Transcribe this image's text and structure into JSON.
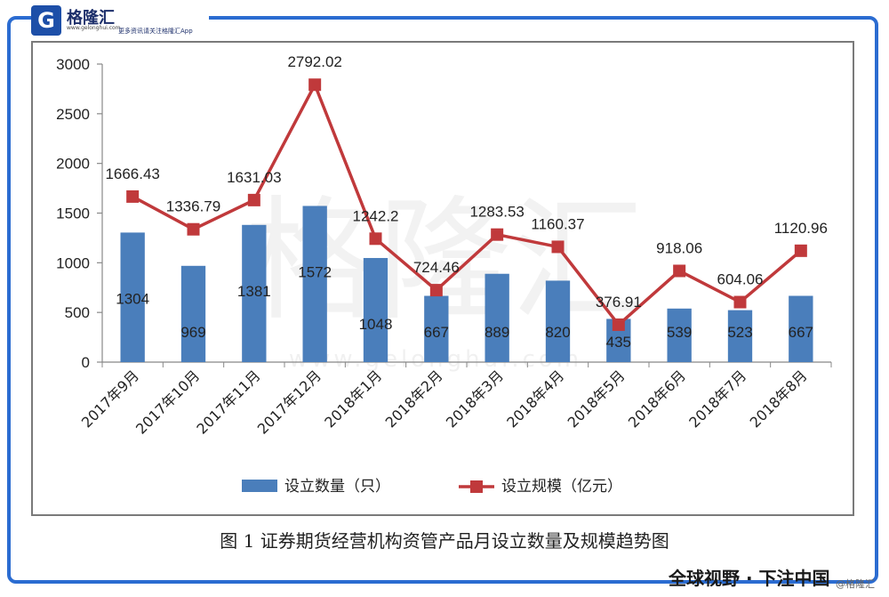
{
  "header": {
    "logo_mark": "G",
    "brand": "格隆汇",
    "domain_text": "www.gelonghui.com",
    "tagline": "更多资讯请关注格隆汇App"
  },
  "caption": "图 1  证券期货经营机构资管产品月设立数量及规模趋势图",
  "footer": {
    "slogan": "全球视野 · 下注中国",
    "watermark_corner": "@格隆汇"
  },
  "watermark": {
    "brand": "格隆汇",
    "url": "www.gelonghui.com"
  },
  "colors": {
    "bar": "#4a7ebb",
    "line": "#c0393b",
    "frame": "#2b6cd1"
  },
  "chart_data": {
    "type": "bar",
    "categories": [
      "2017年9月",
      "2017年10月",
      "2017年11月",
      "2017年12月",
      "2018年1月",
      "2018年2月",
      "2018年3月",
      "2018年4月",
      "2018年5月",
      "2018年6月",
      "2018年7月",
      "2018年8月"
    ],
    "series": [
      {
        "name": "设立数量（只）",
        "type": "bar",
        "values": [
          1304,
          969,
          1381,
          1572,
          1048,
          667,
          889,
          820,
          435,
          539,
          523,
          667
        ],
        "labels": [
          "1304",
          "969",
          "1381",
          "1572",
          "1048",
          "667",
          "889",
          "820",
          "435",
          "539",
          "523",
          "667"
        ]
      },
      {
        "name": "设立规模（亿元）",
        "type": "line",
        "values": [
          1666.43,
          1336.79,
          1631.03,
          2792.02,
          1242.2,
          724.46,
          1283.53,
          1160.37,
          376.91,
          918.06,
          604.06,
          1120.96
        ],
        "labels": [
          "1666.43",
          "1336.79",
          "1631.03",
          "2792.02",
          "1242.2",
          "724.46",
          "1283.53",
          "1160.37",
          "376.91",
          "918.06",
          "604.06",
          "1120.96"
        ]
      }
    ],
    "yticks": [
      "0",
      "500",
      "1000",
      "1500",
      "2000",
      "2500",
      "3000"
    ],
    "ylim": [
      0,
      3000
    ],
    "grid": false,
    "legend": "bottom"
  }
}
